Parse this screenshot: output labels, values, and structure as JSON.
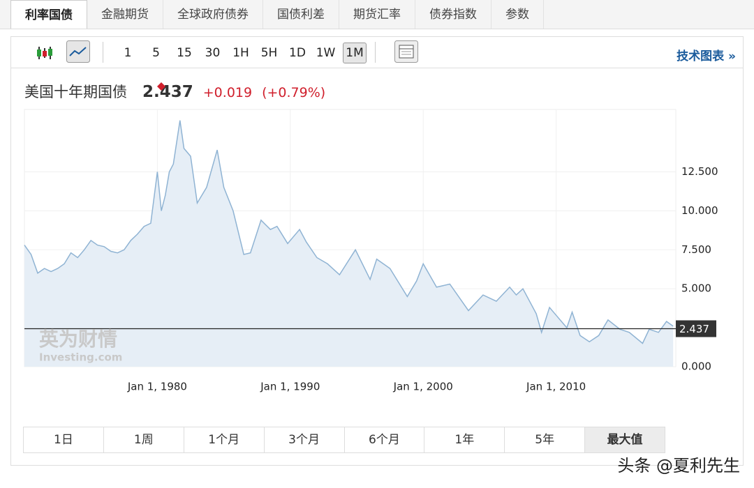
{
  "tabs": {
    "items": [
      "利率国债",
      "金融期货",
      "全球政府债券",
      "国债利差",
      "期货汇率",
      "债券指数",
      "参数"
    ],
    "active": 0
  },
  "toolbar": {
    "intervals": [
      "1",
      "5",
      "15",
      "30",
      "1H",
      "5H",
      "1D",
      "1W",
      "1M"
    ],
    "active": 8,
    "link": "技术图表 »"
  },
  "quote": {
    "name": "美国十年期国债",
    "price": "2.437",
    "change": "+0.019",
    "change_pct": "(+0.79%)"
  },
  "chart_data": {
    "type": "area",
    "color": "#8fb3d3",
    "fill": "#e6eef6",
    "x": [
      1970.0,
      1970.5,
      1971.0,
      1971.5,
      1972.0,
      1972.5,
      1973.0,
      1973.5,
      1974.0,
      1974.5,
      1975.0,
      1975.5,
      1976.0,
      1976.5,
      1977.0,
      1977.5,
      1978.0,
      1978.5,
      1979.0,
      1979.5,
      1980.0,
      1980.3,
      1980.6,
      1980.9,
      1981.2,
      1981.7,
      1982.0,
      1982.5,
      1983.0,
      1983.7,
      1984.5,
      1985.0,
      1985.7,
      1986.5,
      1987.0,
      1987.8,
      1988.5,
      1989.0,
      1989.8,
      1990.7,
      1991.2,
      1992.0,
      1992.8,
      1993.7,
      1994.9,
      1996.0,
      1996.5,
      1997.5,
      1998.8,
      1999.5,
      2000.0,
      2001.0,
      2002.0,
      2003.4,
      2004.5,
      2005.5,
      2006.5,
      2007.0,
      2007.5,
      2008.5,
      2008.9,
      2009.5,
      2010.0,
      2010.8,
      2011.2,
      2011.8,
      2012.5,
      2013.2,
      2013.9,
      2014.8,
      2015.5,
      2016.5,
      2017.0,
      2017.7,
      2018.3,
      2018.8
    ],
    "values": [
      7.8,
      7.2,
      6.0,
      6.3,
      6.1,
      6.3,
      6.6,
      7.3,
      7.0,
      7.5,
      8.1,
      7.8,
      7.7,
      7.4,
      7.3,
      7.5,
      8.1,
      8.5,
      9.0,
      9.2,
      12.5,
      10.0,
      11.0,
      12.5,
      13.0,
      15.8,
      14.0,
      13.5,
      10.5,
      11.5,
      13.9,
      11.5,
      10.0,
      7.2,
      7.3,
      9.4,
      8.8,
      9.0,
      7.9,
      8.8,
      8.0,
      7.0,
      6.6,
      5.9,
      7.5,
      5.6,
      6.9,
      6.3,
      4.5,
      5.5,
      6.6,
      5.1,
      5.3,
      3.6,
      4.6,
      4.2,
      5.1,
      4.6,
      5.0,
      3.4,
      2.2,
      3.8,
      3.3,
      2.5,
      3.5,
      2.0,
      1.6,
      2.0,
      3.0,
      2.4,
      2.2,
      1.5,
      2.4,
      2.2,
      2.9,
      2.6
    ],
    "xlim": [
      1970,
      2019
    ],
    "ylim": [
      0,
      16.5
    ],
    "xticks": [
      {
        "value": 1980,
        "label": "Jan 1, 1980"
      },
      {
        "value": 1990,
        "label": "Jan 1, 1990"
      },
      {
        "value": 2000,
        "label": "Jan 1, 2000"
      },
      {
        "value": 2010,
        "label": "Jan 1, 2010"
      }
    ],
    "yticks": [
      {
        "value": 0,
        "label": "0.000"
      },
      {
        "value": 5,
        "label": "5.000"
      },
      {
        "value": 7.5,
        "label": "7.500"
      },
      {
        "value": 10,
        "label": "10.000"
      },
      {
        "value": 12.5,
        "label": "12.500"
      }
    ],
    "last": {
      "value": 2.437,
      "label": "2.437"
    }
  },
  "watermark": {
    "cn": "英为财情",
    "en": "Investing.com"
  },
  "ranges": {
    "items": [
      "1日",
      "1周",
      "1个月",
      "3个月",
      "6个月",
      "1年",
      "5年",
      "最大值"
    ],
    "active": 7
  },
  "footer": "头条 @夏利先生"
}
